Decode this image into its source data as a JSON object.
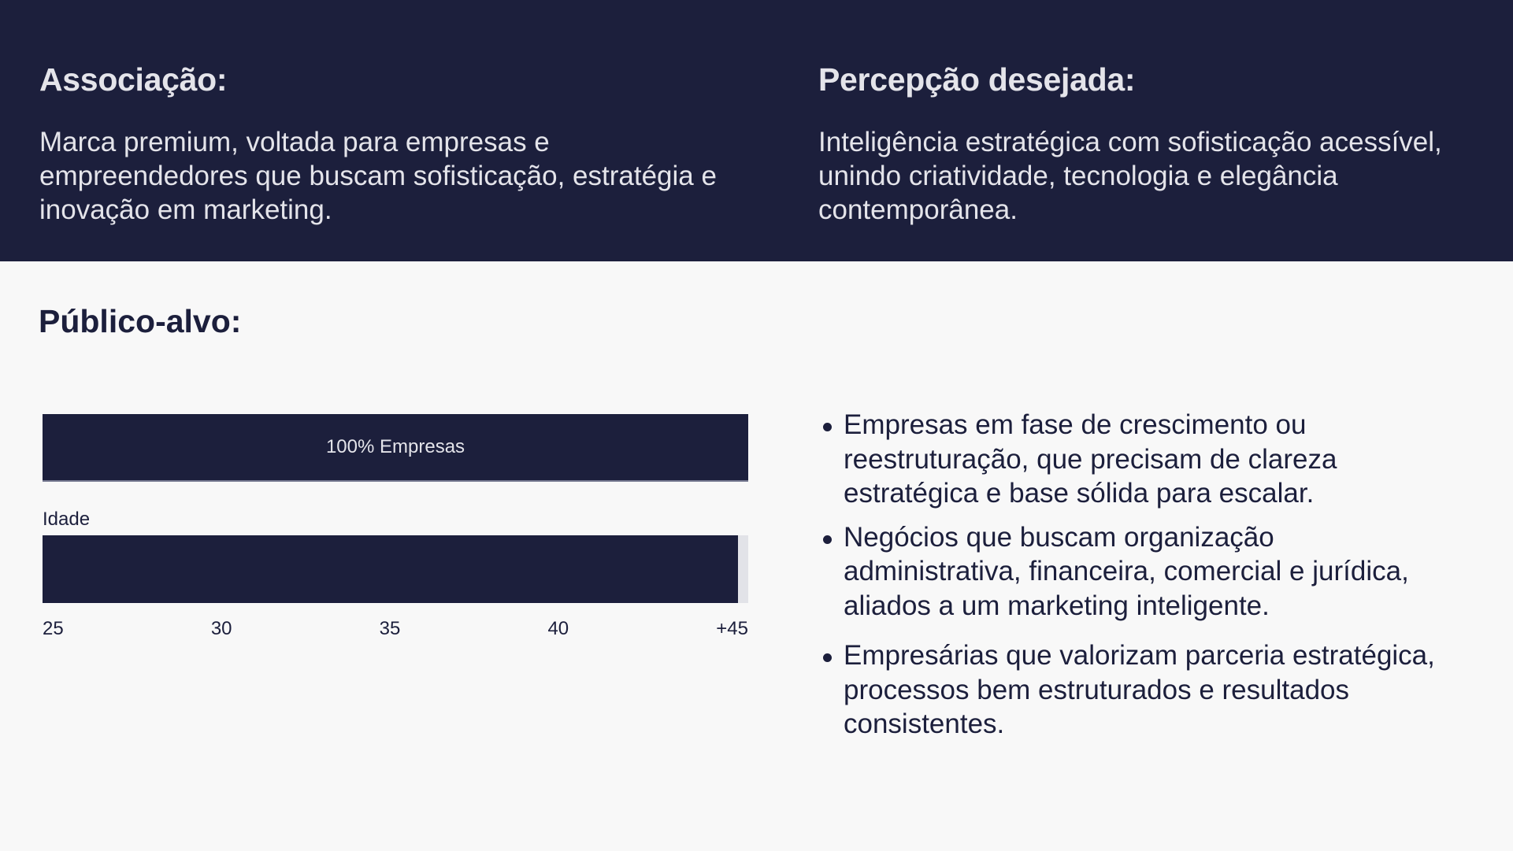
{
  "header": {
    "left": {
      "title": "Associação:",
      "text": "Marca premium, voltada para empresas e empreendedores que buscam sofisticação, estratégia e inovação em marketing."
    },
    "right": {
      "title": "Percepção desejada:",
      "text": "Inteligência estratégica com sofisticação acessível, unindo criatividade, tecnologia e elegância contemporânea."
    }
  },
  "audience": {
    "title": "Público-alvo:",
    "company_bar_label": "100% Empresas",
    "age_label": "Idade",
    "age_fill_percent": 98.5,
    "age_ticks": [
      "25",
      "30",
      "35",
      "40",
      "+45"
    ],
    "bullets": [
      "Empresas em fase de crescimento ou reestruturação, que precisam de clareza estratégica e base sólida para escalar.",
      "Negócios que buscam organização administrativa, financeira, comercial e jurídica, aliados a um marketing inteligente.",
      "Empresárias que valorizam parceria estratégica, processos bem estruturados e resultados consistentes."
    ]
  },
  "colors": {
    "navy": "#1c1f3c",
    "background": "#f8f8f8"
  }
}
